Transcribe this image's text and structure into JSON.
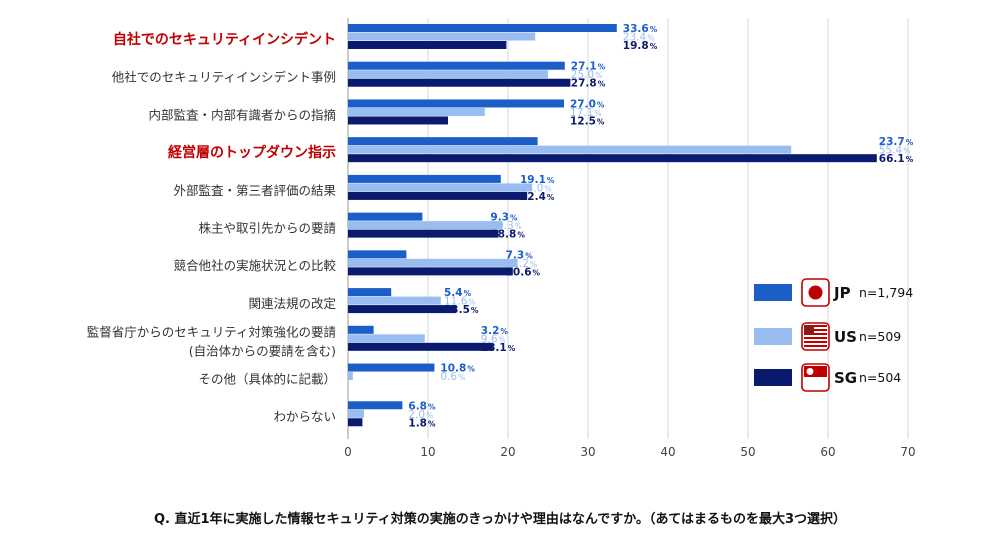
{
  "colors": {
    "JP": "#1b5ec8",
    "US": "#99bdf0",
    "SG": "#0a1a6e",
    "highlight": "#c00000"
  },
  "chart_data": {
    "type": "bar",
    "orientation": "horizontal",
    "title": "",
    "xlabel": "",
    "ylabel": "",
    "xlim": [
      0,
      70
    ],
    "ticks": [
      0,
      10,
      20,
      30,
      40,
      50,
      60,
      70
    ],
    "grid": true,
    "percent_suffix": "%",
    "categories": [
      {
        "label": "自社でのセキュリティインシデント",
        "highlight": true
      },
      {
        "label": "他社でのセキュリティインシデント事例",
        "highlight": false
      },
      {
        "label": "内部監査・内部有識者からの指摘",
        "highlight": false
      },
      {
        "label": "経営層のトップダウン指示",
        "highlight": true
      },
      {
        "label": "外部監査・第三者評価の結果",
        "highlight": false
      },
      {
        "label": "株主や取引先からの要請",
        "highlight": false
      },
      {
        "label": "競合他社の実施状況との比較",
        "highlight": false
      },
      {
        "label": "関連法規の改定",
        "highlight": false
      },
      {
        "label": "監督省庁からのセキュリティ対策強化の要請",
        "label2": "(自治体からの要請を含む)",
        "highlight": false
      },
      {
        "label": "その他（具体的に記載）",
        "highlight": false
      },
      {
        "label": "わからない",
        "highlight": false
      }
    ],
    "series": [
      {
        "key": "JP",
        "name": "JP",
        "n": "n=1,794",
        "values": [
          33.6,
          27.1,
          27.0,
          23.7,
          19.1,
          9.3,
          7.3,
          5.4,
          3.2,
          10.8,
          6.8
        ]
      },
      {
        "key": "US",
        "name": "US",
        "n": "n=509",
        "values": [
          23.4,
          25.0,
          17.1,
          55.4,
          23.0,
          19.3,
          21.2,
          11.6,
          9.6,
          0.6,
          2.0
        ]
      },
      {
        "key": "SG",
        "name": "SG",
        "n": "n=504",
        "values": [
          19.8,
          27.8,
          12.5,
          66.1,
          22.4,
          18.8,
          20.6,
          13.5,
          18.1,
          null,
          1.8
        ]
      }
    ],
    "legend": "right",
    "footnote": "Q. 直近1年に実施した情報セキュリティ対策の実施のきっかけや理由はなんですか。（あてはまるものを最大3つ選択）"
  }
}
